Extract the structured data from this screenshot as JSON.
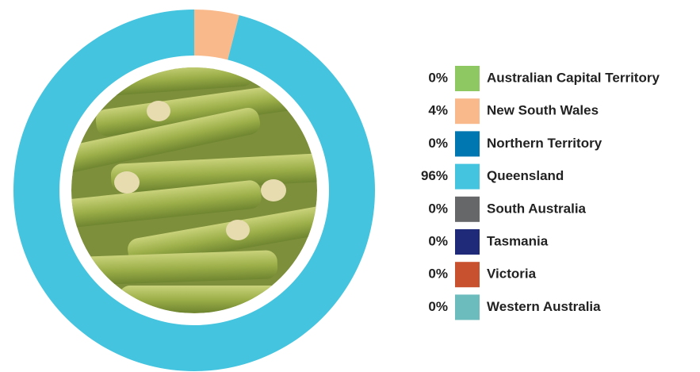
{
  "chart_data": {
    "type": "donut",
    "categories": [
      "Australian Capital Territory",
      "New South Wales",
      "Northern Territory",
      "Queensland",
      "South Australia",
      "Tasmania",
      "Victoria",
      "Western Australia"
    ],
    "values": [
      0,
      4,
      0,
      96,
      0,
      0,
      0,
      0
    ],
    "value_labels": [
      "0%",
      "4%",
      "0%",
      "96%",
      "0%",
      "0%",
      "0%",
      "0%"
    ],
    "colors": [
      "#8dc862",
      "#f9b98b",
      "#0077b0",
      "#44c4de",
      "#666769",
      "#1f2a78",
      "#c8522f",
      "#6cbcbd"
    ]
  }
}
